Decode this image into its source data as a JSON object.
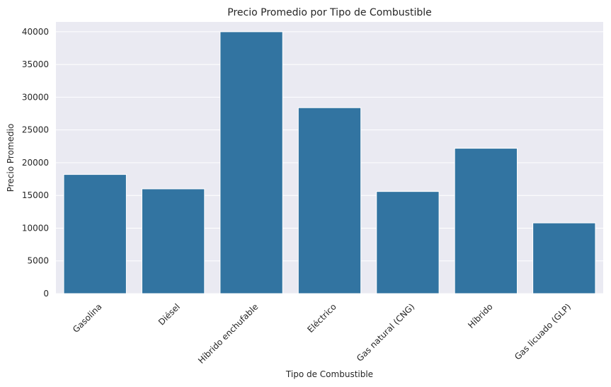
{
  "chart_data": {
    "type": "bar",
    "title": "Precio Promedio por Tipo de Combustible",
    "xlabel": "Tipo de Combustible",
    "ylabel": "Precio Promedio",
    "categories": [
      "Gasolina",
      "Diésel",
      "Híbrido enchufable",
      "Eléctrico",
      "Gas natural (CNG)",
      "Híbrido",
      "Gas licuado (GLP)"
    ],
    "values": [
      18200,
      16000,
      40000,
      28400,
      15600,
      22200,
      10800
    ],
    "ylim": [
      0,
      41500
    ],
    "yticks": [
      0,
      5000,
      10000,
      15000,
      20000,
      25000,
      30000,
      35000,
      40000
    ],
    "grid": true,
    "colors": {
      "bar": "#3274a1",
      "background": "#eaeaf2",
      "grid": "#ffffff"
    }
  }
}
